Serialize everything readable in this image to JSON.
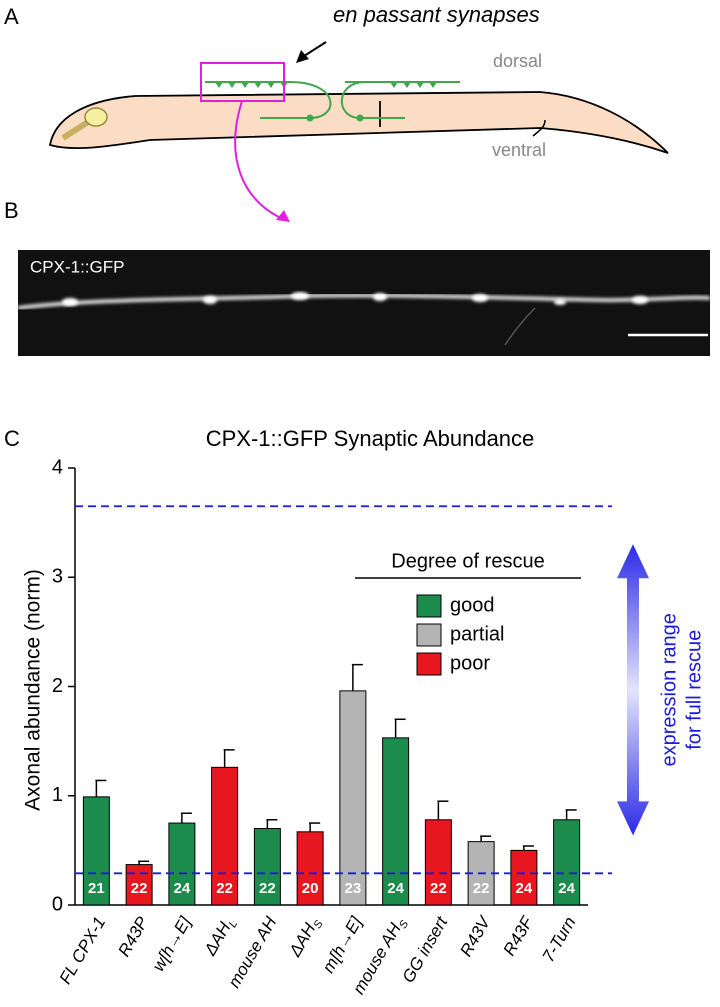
{
  "panels": {
    "a": "A",
    "b": "B",
    "c": "C"
  },
  "diagram": {
    "synapse_label": "en passant synapses",
    "dorsal": "dorsal",
    "ventral": "ventral"
  },
  "micrograph": {
    "label": "CPX-1::GFP"
  },
  "chart_data": {
    "type": "bar",
    "title": "CPX-1::GFP Synaptic Abundance",
    "y_label": "Axonal abundance (norm)",
    "categories": [
      "FL CPX-1",
      "R43P",
      "w[h→E]",
      "ΔAH",
      "mouse AH",
      "ΔAH",
      "m[h→E]",
      "mouse AH",
      "GG insert",
      "R43V",
      "R43F",
      "7-Turn"
    ],
    "subscripts": {
      "3": "L",
      "5": "S",
      "7": "S"
    },
    "values": [
      0.99,
      0.37,
      0.75,
      1.26,
      0.7,
      0.67,
      1.96,
      1.53,
      0.78,
      0.58,
      0.5,
      0.78
    ],
    "errors": [
      0.15,
      0.03,
      0.09,
      0.16,
      0.08,
      0.08,
      0.24,
      0.17,
      0.17,
      0.05,
      0.04,
      0.09
    ],
    "n": [
      21,
      22,
      24,
      22,
      22,
      20,
      23,
      24,
      22,
      22,
      24,
      24
    ],
    "rescue": [
      "good",
      "poor",
      "good",
      "poor",
      "good",
      "poor",
      "partial",
      "good",
      "poor",
      "partial",
      "poor",
      "good"
    ],
    "legend": {
      "title": "Degree of rescue",
      "entries": [
        {
          "key": "good",
          "name": "good",
          "color": "#1b8c4c"
        },
        {
          "key": "partial",
          "name": "partial",
          "color": "#b4b4b4"
        },
        {
          "key": "poor",
          "name": "poor",
          "color": "#e8161e"
        }
      ]
    },
    "reference_lines": [
      3.65,
      0.29
    ],
    "reference_color": "#1a1adf",
    "range_label": [
      "expression range",
      "for full rescue"
    ],
    "ylim": [
      0,
      4
    ],
    "yticks": [
      0,
      1,
      2,
      3,
      4
    ]
  }
}
